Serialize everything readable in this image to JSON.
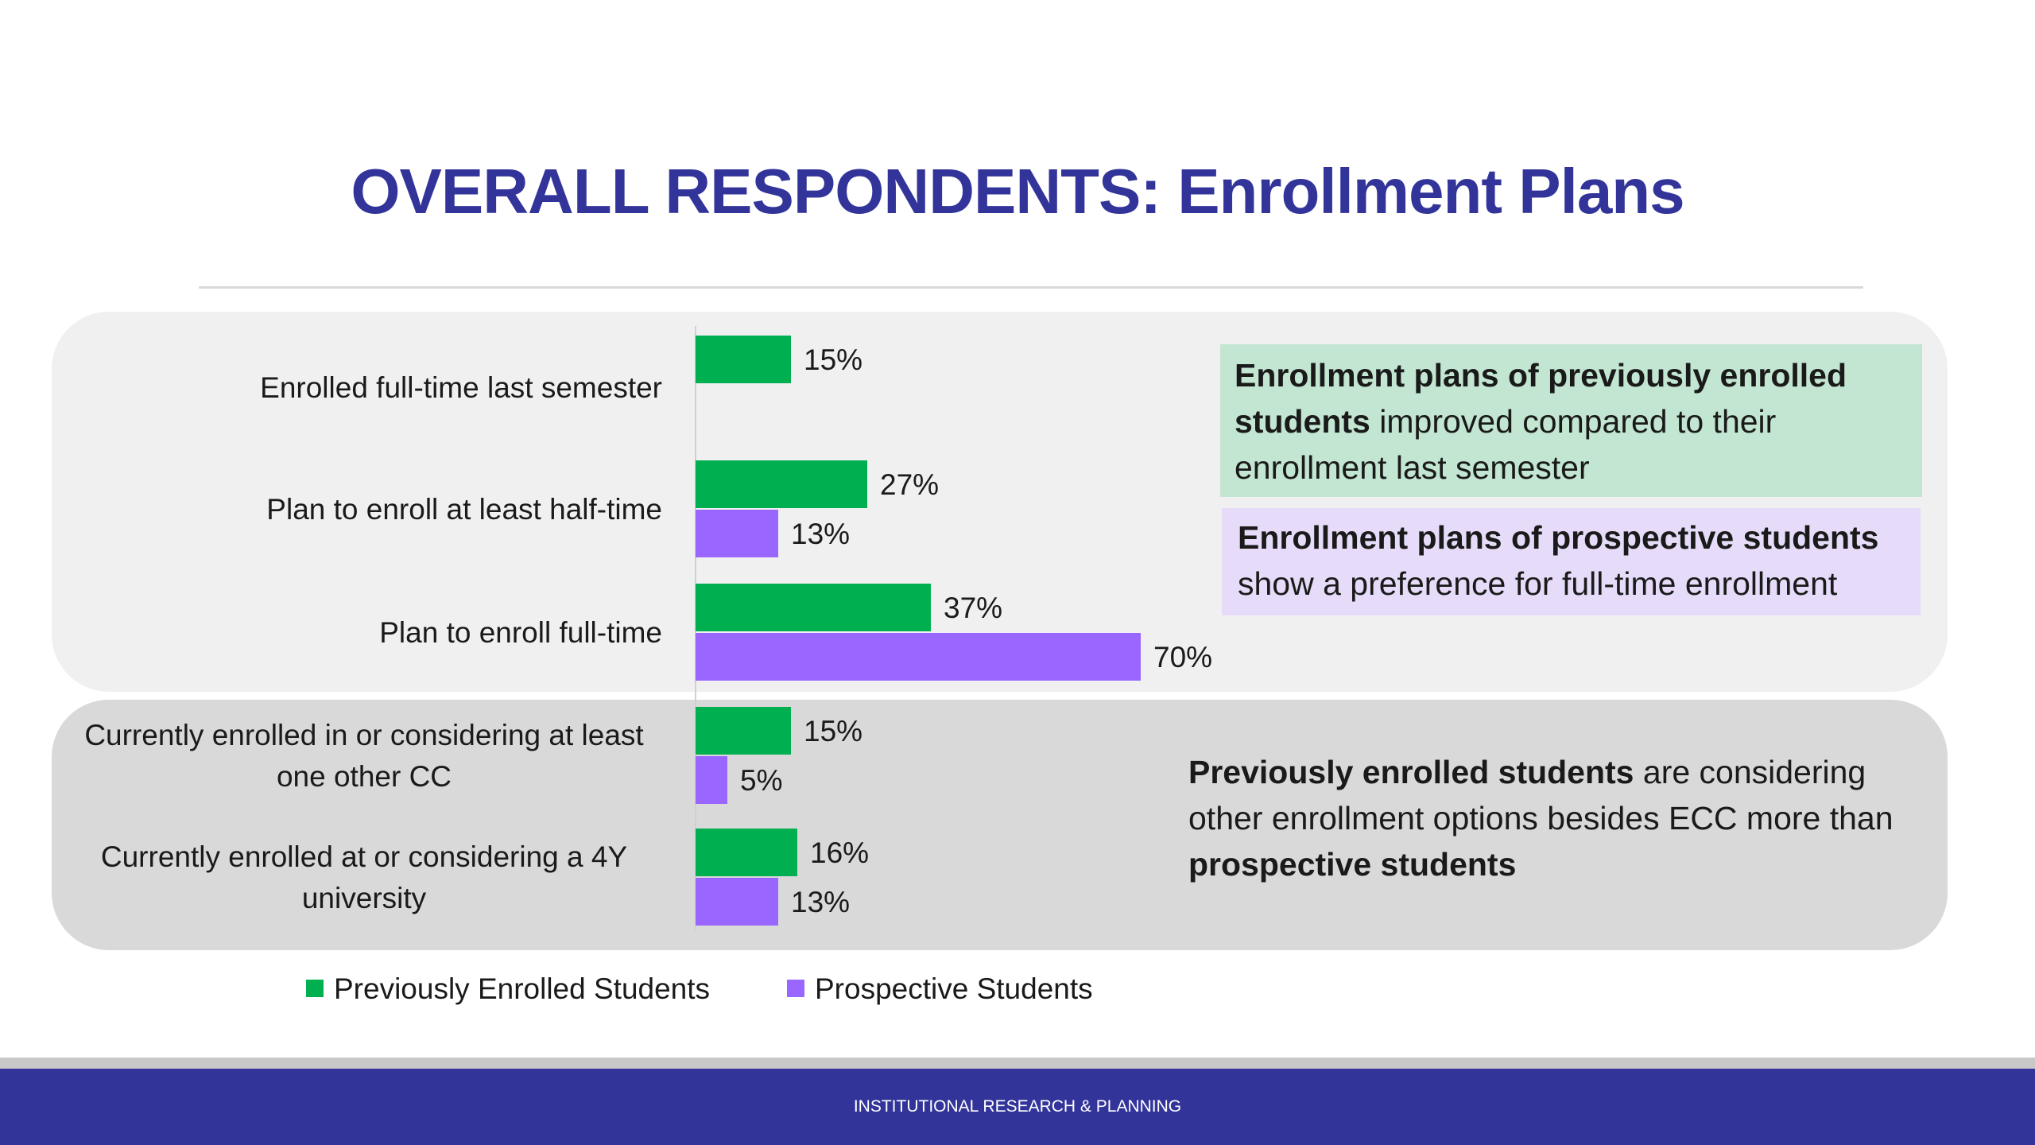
{
  "title": "OVERALL RESPONDENTS: Enrollment Plans",
  "footer": "INSTITUTIONAL RESEARCH & PLANNING",
  "notes": {
    "green": {
      "bold": "Enrollment plans of previously enrolled students",
      "rest": " improved compared to their enrollment last semester"
    },
    "purple": {
      "bold": "Enrollment plans of prospective students",
      "rest": " show a preference for full-time enrollment"
    },
    "plain": {
      "bold1": "Previously enrolled students",
      "mid": " are considering other enrollment options besides ECC more than ",
      "bold2": "prospective students"
    }
  },
  "colors": {
    "previously_enrolled": "#00b050",
    "prospective": "#9966ff",
    "title": "#32349a"
  },
  "chart_data": {
    "type": "bar",
    "orientation": "horizontal",
    "categories": [
      [
        "Enrolled full-time last semester"
      ],
      [
        "Plan to enroll at least half-time"
      ],
      [
        "Plan to enroll full-time"
      ],
      [
        "Currently enrolled in or considering at least",
        "one other CC"
      ],
      [
        "Currently enrolled at or considering a 4Y",
        "university"
      ]
    ],
    "series": [
      {
        "name": "Previously Enrolled Students",
        "values": [
          15,
          27,
          37,
          15,
          16
        ],
        "labels": [
          "15%",
          "27%",
          "37%",
          "15%",
          "16%"
        ]
      },
      {
        "name": "Prospective Students",
        "values": [
          null,
          13,
          70,
          5,
          13
        ],
        "labels": [
          "",
          "13%",
          "70%",
          "5%",
          "13%"
        ]
      }
    ],
    "unit": "%",
    "xlim": [
      0,
      100
    ],
    "legend_position": "bottom-left"
  }
}
